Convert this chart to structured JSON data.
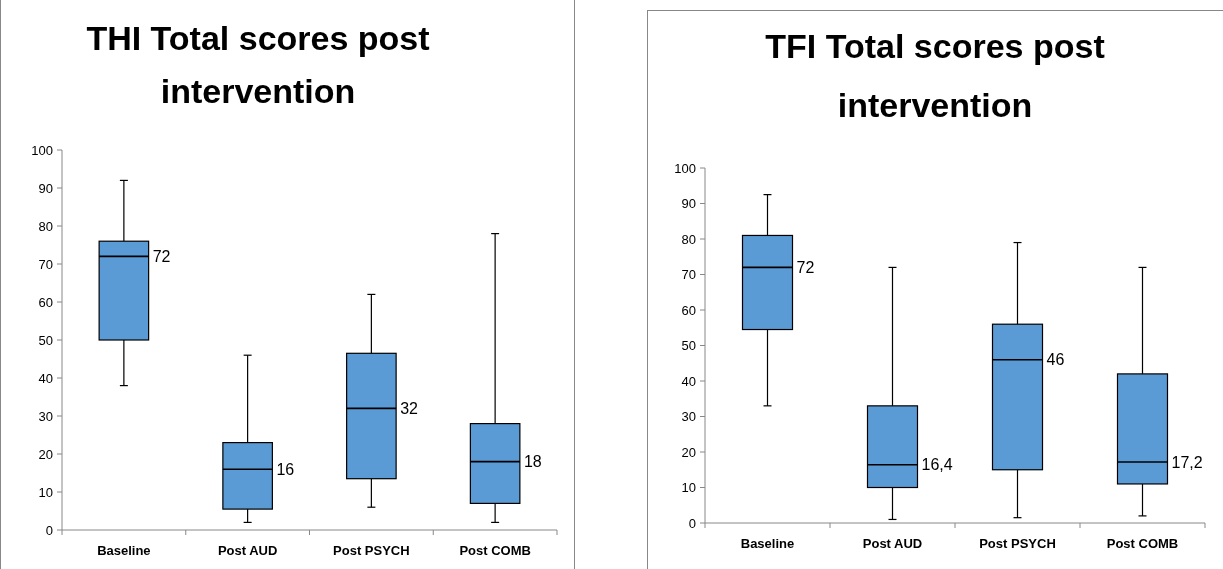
{
  "chart_data": [
    {
      "type": "box",
      "title": "THI Total scores post intervention",
      "categories": [
        "Baseline",
        "Post AUD",
        "Post PSYCH",
        "Post COMB"
      ],
      "color": "#5b9bd5",
      "ylim": [
        0,
        100
      ],
      "yticks": [
        0,
        10,
        20,
        30,
        40,
        50,
        60,
        70,
        80,
        90,
        100
      ],
      "grid": false,
      "boxes": [
        {
          "low": 38,
          "q1": 50,
          "median": 72,
          "q3": 76,
          "high": 92
        },
        {
          "low": 2,
          "q1": 5.5,
          "median": 16,
          "q3": 23,
          "high": 46
        },
        {
          "low": 6,
          "q1": 13.5,
          "median": 32,
          "q3": 46.5,
          "high": 62
        },
        {
          "low": 2,
          "q1": 7,
          "median": 18,
          "q3": 28,
          "high": 78
        }
      ],
      "value_labels": [
        "72",
        "16",
        "32",
        "18"
      ]
    },
    {
      "type": "box",
      "title": "TFI Total scores post intervention",
      "categories": [
        "Baseline",
        "Post AUD",
        "Post PSYCH",
        "Post COMB"
      ],
      "color": "#5b9bd5",
      "ylim": [
        0,
        100
      ],
      "yticks": [
        0,
        10,
        20,
        30,
        40,
        50,
        60,
        70,
        80,
        90,
        100
      ],
      "grid": false,
      "boxes": [
        {
          "low": 33,
          "q1": 54.5,
          "median": 72,
          "q3": 81,
          "high": 92.5
        },
        {
          "low": 1,
          "q1": 10,
          "median": 16.4,
          "q3": 33,
          "high": 72
        },
        {
          "low": 1.5,
          "q1": 15,
          "median": 46,
          "q3": 56,
          "high": 79
        },
        {
          "low": 2,
          "q1": 11,
          "median": 17.2,
          "q3": 42,
          "high": 72
        }
      ],
      "value_labels": [
        "72",
        "16,4",
        "46",
        "17,2"
      ]
    }
  ]
}
